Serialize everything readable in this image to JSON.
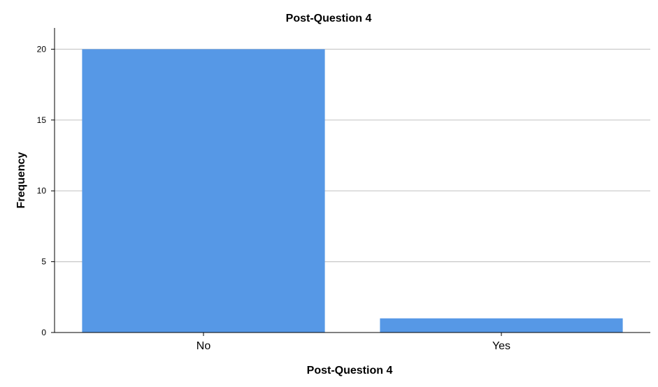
{
  "chart_data": {
    "type": "bar",
    "title": "Post-Question 4",
    "xlabel": "Post-Question 4",
    "ylabel": "Frequency",
    "categories": [
      "No",
      "Yes"
    ],
    "values": [
      20,
      1
    ],
    "ylim": [
      0,
      21.5
    ],
    "yticks": [
      "0",
      "5",
      "10",
      "15",
      "20"
    ],
    "grid": true,
    "bar_color": "#5698e6"
  }
}
